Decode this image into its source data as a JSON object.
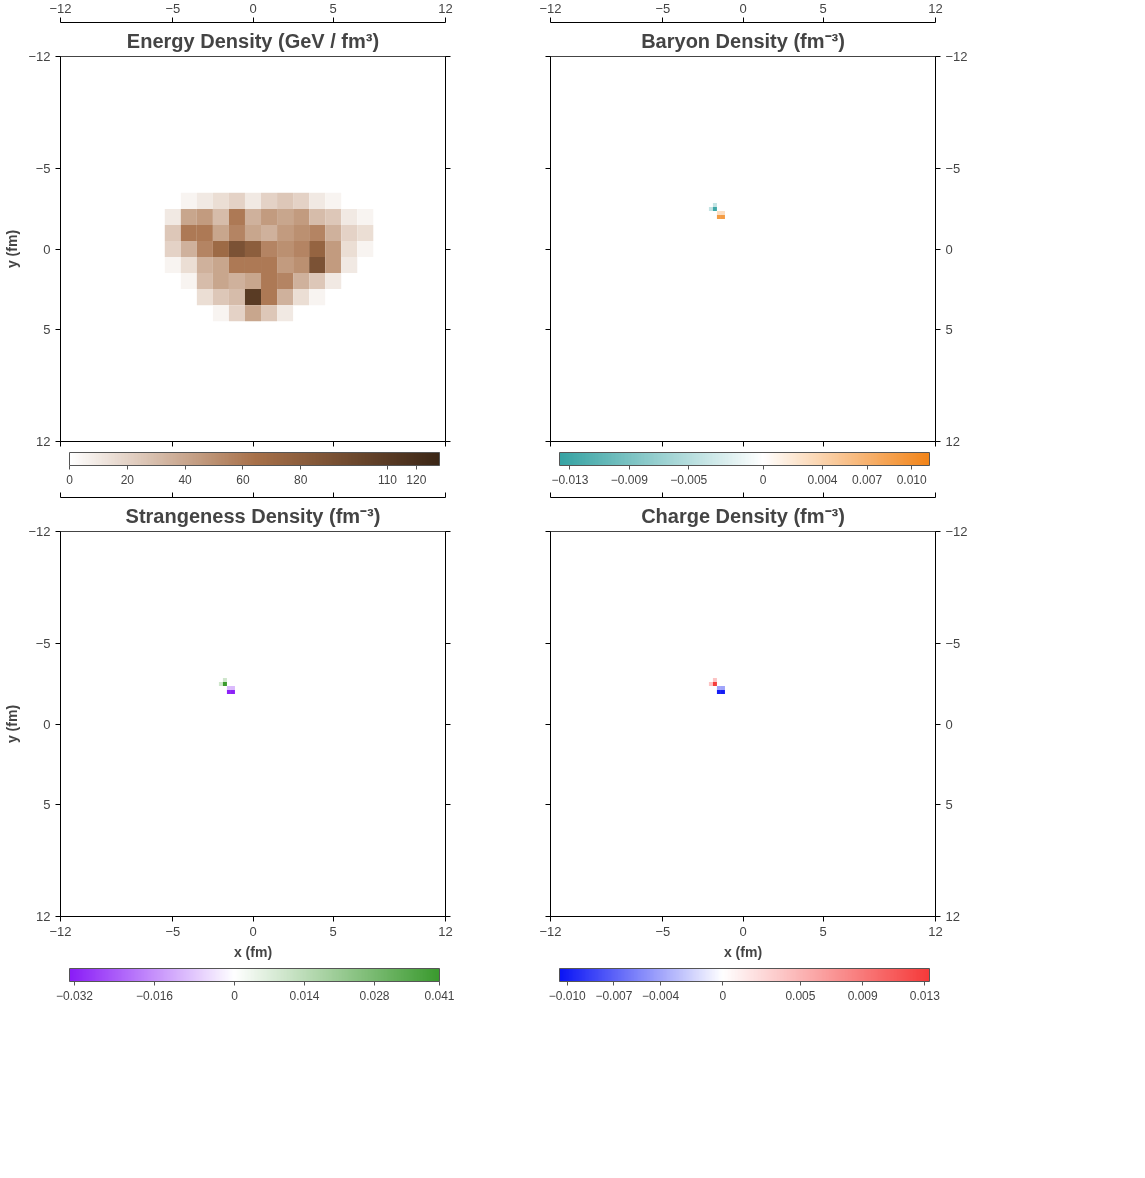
{
  "chart_data": [
    {
      "type": "scatter",
      "marker": "square",
      "title": "Energy Density (GeV / fm³)",
      "ylabel": "y (fm)",
      "xlim": [
        -12,
        12
      ],
      "xticks": [
        -12,
        -5,
        0,
        5,
        12
      ],
      "ylim": [
        12,
        -12
      ],
      "yticks": [
        -12,
        -5,
        0,
        5,
        12
      ],
      "x": [
        -4,
        -3,
        -2,
        -1,
        0,
        1,
        2,
        3,
        4,
        5,
        -5,
        -4,
        -3,
        -2,
        -1,
        0,
        1,
        2,
        3,
        4,
        5,
        6,
        7,
        -5,
        -4,
        -3,
        -2,
        -1,
        0,
        1,
        2,
        3,
        4,
        5,
        6,
        7,
        -5,
        -4,
        -3,
        -2,
        -1,
        0,
        1,
        2,
        3,
        4,
        5,
        6,
        7,
        -5,
        -4,
        -3,
        -2,
        -1,
        0,
        1,
        2,
        3,
        4,
        5,
        6,
        -4,
        -3,
        -2,
        -1,
        0,
        1,
        2,
        3,
        4,
        5,
        -3,
        -2,
        -1,
        0,
        1,
        2,
        3,
        4,
        -2,
        -1,
        0,
        1,
        2
      ],
      "values": [
        -3,
        -3,
        -3,
        -3,
        -3,
        -3,
        -3,
        -3,
        -3,
        -3,
        -2,
        -2,
        -2,
        -2,
        -2,
        -2,
        -2,
        -2,
        -2,
        -2,
        -2,
        -2,
        -2,
        -1,
        -1,
        -1,
        -1,
        -1,
        -1,
        -1,
        -1,
        -1,
        -1,
        -1,
        -1,
        -1,
        0,
        0,
        0,
        0,
        0,
        0,
        0,
        0,
        0,
        0,
        0,
        0,
        0,
        1,
        1,
        1,
        1,
        1,
        1,
        1,
        1,
        1,
        1,
        1,
        1,
        2,
        2,
        2,
        2,
        2,
        2,
        2,
        2,
        2,
        2,
        3,
        3,
        3,
        3,
        3,
        3,
        3,
        3,
        4,
        4,
        4,
        4,
        4
      ],
      "cvalues": [
        5,
        10,
        15,
        20,
        10,
        20,
        25,
        20,
        10,
        5,
        10,
        40,
        45,
        30,
        60,
        35,
        45,
        40,
        45,
        30,
        25,
        10,
        5,
        25,
        60,
        60,
        40,
        55,
        40,
        35,
        45,
        50,
        55,
        35,
        20,
        15,
        20,
        35,
        55,
        70,
        90,
        80,
        55,
        50,
        55,
        75,
        45,
        15,
        5,
        5,
        15,
        35,
        40,
        60,
        60,
        60,
        45,
        50,
        90,
        45,
        10,
        5,
        30,
        40,
        35,
        40,
        60,
        55,
        35,
        25,
        10,
        15,
        25,
        30,
        110,
        60,
        35,
        15,
        5,
        5,
        20,
        40,
        25,
        10
      ],
      "clim": [
        0,
        128
      ],
      "cticks": [
        0,
        20,
        40,
        60,
        80,
        110,
        120
      ]
    },
    {
      "type": "scatter",
      "marker": "square",
      "title": "Baryon Density (fm⁻³)",
      "xlim": [
        -12,
        12
      ],
      "xticks": [
        -12,
        -5,
        0,
        5,
        12
      ],
      "ylim": [
        12,
        -12
      ],
      "yticks": [
        -12,
        -5,
        0,
        5,
        12
      ],
      "x": [
        -1.75,
        -2,
        -1.75,
        -1.5,
        -1.25,
        -1.5,
        -1.25
      ],
      "values": [
        -2.75,
        -2.5,
        -2.5,
        -2.25,
        -2.25,
        -2,
        -2
      ],
      "cvalues": [
        -0.004,
        -0.004,
        -0.013,
        0.003,
        0.003,
        0.009,
        0.009
      ],
      "clim": [
        -0.0137,
        0.0112
      ],
      "cticks": [
        -0.013,
        -0.009,
        -0.005,
        0,
        0.004,
        0.007,
        {
          "value": 0.01,
          "label": "0.010"
        }
      ]
    },
    {
      "type": "scatter",
      "marker": "square",
      "title": "Strangeness Density (fm⁻³)",
      "xlabel": "x (fm)",
      "ylabel": "y (fm)",
      "xlim": [
        -12,
        12
      ],
      "xticks": [
        -12,
        -5,
        0,
        5,
        12
      ],
      "ylim": [
        12,
        -12
      ],
      "yticks": [
        -12,
        -5,
        0,
        5,
        12
      ],
      "x": [
        -1.75,
        -2,
        -1.75,
        -1.5,
        -1.25,
        -1.5,
        -1.25
      ],
      "values": [
        -2.75,
        -2.5,
        -2.5,
        -2.25,
        -2.25,
        -2,
        -2
      ],
      "cvalues": [
        0.01,
        0.01,
        0.041,
        -0.01,
        -0.01,
        -0.032,
        -0.032
      ],
      "clim": [
        -0.033,
        0.041
      ],
      "cticks": [
        -0.032,
        -0.016,
        0,
        0.014,
        0.028,
        0.041
      ]
    },
    {
      "type": "scatter",
      "marker": "square",
      "title": "Charge Density (fm⁻³)",
      "xlabel": "x (fm)",
      "xlim": [
        -12,
        12
      ],
      "xticks": [
        -12,
        -5,
        0,
        5,
        12
      ],
      "ylim": [
        12,
        -12
      ],
      "yticks": [
        -12,
        -5,
        0,
        5,
        12
      ],
      "x": [
        -1.75,
        -2,
        -1.75,
        -1.5,
        -1.25,
        -1.5,
        -1.25
      ],
      "values": [
        -2.75,
        -2.5,
        -2.5,
        -2.25,
        -2.25,
        -2,
        -2
      ],
      "cvalues": [
        0.004,
        0.004,
        0.013,
        -0.004,
        -0.004,
        -0.01,
        -0.01
      ],
      "clim": [
        -0.0105,
        0.0133
      ],
      "cticks": [
        {
          "value": -0.01,
          "label": "−0.010"
        },
        -0.007,
        -0.004,
        0,
        0.005,
        0.009,
        0.013
      ]
    }
  ]
}
